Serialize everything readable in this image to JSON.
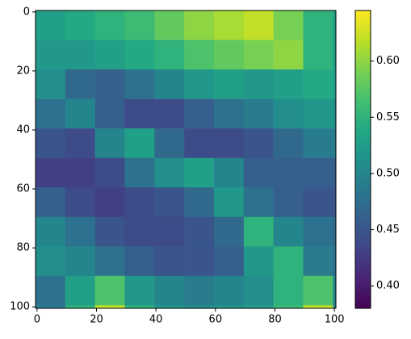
{
  "chart_data": {
    "type": "heatmap",
    "colormap": "viridis",
    "xbins": [
      -0.5,
      9.5,
      19.5,
      29.5,
      39.5,
      49.5,
      59.5,
      69.5,
      79.5,
      89.5,
      99.5,
      100.5
    ],
    "ybins": [
      -0.5,
      9.5,
      19.5,
      29.5,
      39.5,
      49.5,
      59.5,
      69.5,
      79.5,
      89.5,
      99.5,
      100.5
    ],
    "values": [
      [
        0.53,
        0.54,
        0.55,
        0.56,
        0.58,
        0.6,
        0.61,
        0.62,
        0.59,
        0.55,
        0.53
      ],
      [
        0.52,
        0.52,
        0.53,
        0.54,
        0.55,
        0.57,
        0.58,
        0.59,
        0.6,
        0.55,
        0.53
      ],
      [
        0.51,
        0.47,
        0.46,
        0.48,
        0.5,
        0.52,
        0.53,
        0.52,
        0.53,
        0.54,
        0.53
      ],
      [
        0.48,
        0.5,
        0.46,
        0.44,
        0.44,
        0.46,
        0.48,
        0.49,
        0.51,
        0.52,
        0.51
      ],
      [
        0.45,
        0.44,
        0.5,
        0.53,
        0.47,
        0.44,
        0.44,
        0.45,
        0.47,
        0.49,
        0.49
      ],
      [
        0.43,
        0.43,
        0.44,
        0.48,
        0.51,
        0.53,
        0.5,
        0.46,
        0.46,
        0.46,
        0.46
      ],
      [
        0.46,
        0.44,
        0.43,
        0.44,
        0.45,
        0.47,
        0.52,
        0.48,
        0.46,
        0.45,
        0.45
      ],
      [
        0.5,
        0.48,
        0.45,
        0.44,
        0.44,
        0.45,
        0.47,
        0.55,
        0.5,
        0.48,
        0.47
      ],
      [
        0.51,
        0.5,
        0.48,
        0.46,
        0.45,
        0.45,
        0.46,
        0.52,
        0.55,
        0.49,
        0.48
      ],
      [
        0.48,
        0.53,
        0.57,
        0.52,
        0.5,
        0.49,
        0.5,
        0.51,
        0.55,
        0.57,
        0.5
      ],
      [
        0.49,
        0.55,
        0.62,
        0.55,
        0.52,
        0.51,
        0.52,
        0.53,
        0.56,
        0.62,
        0.5
      ]
    ],
    "xlim": [
      -0.5,
      100.5
    ],
    "ylim": [
      100.5,
      -0.5
    ],
    "xticks": [
      0,
      20,
      40,
      60,
      80,
      100
    ],
    "yticks": [
      0,
      20,
      40,
      60,
      80,
      100
    ],
    "clim": [
      0.38,
      0.645
    ],
    "cticks": [
      {
        "value": 0.4,
        "label": "0.40"
      },
      {
        "value": 0.45,
        "label": "0.45"
      },
      {
        "value": 0.5,
        "label": "0.50"
      },
      {
        "value": 0.55,
        "label": "0.55"
      },
      {
        "value": 0.6,
        "label": "0.60"
      }
    ]
  }
}
